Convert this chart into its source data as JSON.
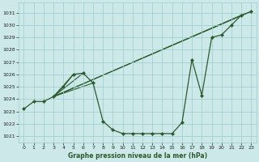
{
  "title": "Graphe pression niveau de la mer (hPa)",
  "background_color": "#cce8e8",
  "grid_color": "#99cccc",
  "line_color": "#2d5a2d",
  "marker_color": "#2d5a2d",
  "x_values": [
    0,
    1,
    2,
    3,
    4,
    5,
    6,
    7,
    8,
    9,
    10,
    11,
    12,
    13,
    14,
    15,
    16,
    17,
    18,
    19,
    20,
    21,
    22,
    23
  ],
  "y_values": [
    1023.2,
    1023.8,
    1023.8,
    1024.2,
    1025.0,
    1026.0,
    1026.1,
    1025.3,
    1022.2,
    1021.5,
    1021.2,
    1021.2,
    1021.2,
    1021.2,
    1021.2,
    1021.2,
    1022.1,
    1027.2,
    1024.3,
    1029.0,
    1029.2,
    1030.0,
    1030.8,
    1031.1
  ],
  "fan_hub": [
    3,
    1024.2
  ],
  "fan_targets": [
    [
      5,
      1026.0
    ],
    [
      6,
      1026.1
    ],
    [
      7,
      1025.3
    ],
    [
      22,
      1030.8
    ],
    [
      23,
      1031.1
    ]
  ],
  "ylim": [
    1020.5,
    1031.8
  ],
  "xlim": [
    -0.5,
    23.5
  ],
  "yticks": [
    1021,
    1022,
    1023,
    1024,
    1025,
    1026,
    1027,
    1028,
    1029,
    1030,
    1031
  ],
  "xticks": [
    0,
    1,
    2,
    3,
    4,
    5,
    6,
    7,
    8,
    9,
    10,
    11,
    12,
    13,
    14,
    15,
    16,
    17,
    18,
    19,
    20,
    21,
    22,
    23
  ],
  "figsize": [
    3.2,
    2.0
  ],
  "dpi": 100
}
